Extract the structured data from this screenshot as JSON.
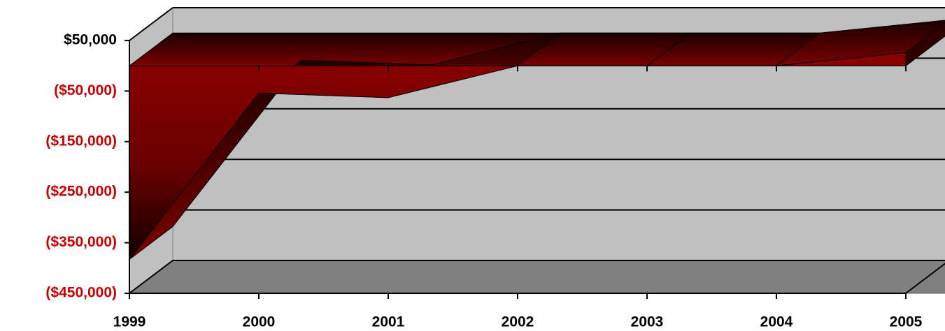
{
  "chart_data": {
    "type": "area3d",
    "categories": [
      "1999",
      "2000",
      "2001",
      "2002",
      "2003",
      "2004",
      "2005"
    ],
    "values": [
      -383000,
      -54000,
      -63000,
      0,
      0,
      0,
      26000
    ],
    "color": "#8b0000",
    "ylim": [
      -450000,
      50000
    ],
    "yticks": [
      {
        "value": 50000,
        "label": "$50,000"
      },
      {
        "value": -50000,
        "label": "($50,000)"
      },
      {
        "value": -150000,
        "label": "($150,000)"
      },
      {
        "value": -250000,
        "label": "($250,000)"
      },
      {
        "value": -350000,
        "label": "($350,000)"
      },
      {
        "value": -450000,
        "label": "($450,000)"
      }
    ],
    "label_color": "#000000",
    "negative_label_color": "#cc0000",
    "grid": true
  }
}
